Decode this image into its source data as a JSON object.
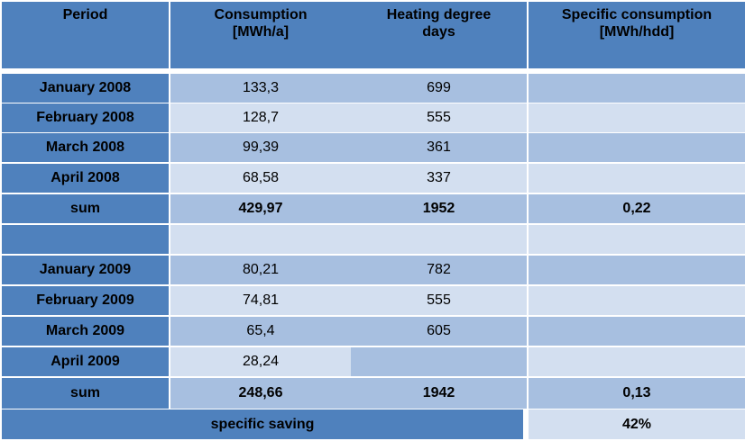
{
  "table": {
    "headers": [
      "Period",
      "Consumption\n[MWh/a]",
      "Heating degree\ndays",
      "Specific  consumption\n[MWh/hdd]"
    ],
    "rows": [
      {
        "period": "January 2008",
        "consumption": "133,3",
        "hdd": "699",
        "specific": ""
      },
      {
        "period": "February 2008",
        "consumption": "128,7",
        "hdd": "555",
        "specific": ""
      },
      {
        "period": "March 2008",
        "consumption": "99,39",
        "hdd": "361",
        "specific": ""
      },
      {
        "period": "April 2008",
        "consumption": "68,58",
        "hdd": "337",
        "specific": ""
      },
      {
        "period": "sum",
        "consumption": "429,97",
        "hdd": "1952",
        "specific": "0,22"
      },
      {
        "period": "",
        "consumption": "",
        "hdd": "",
        "specific": ""
      },
      {
        "period": "January 2009",
        "consumption": "80,21",
        "hdd": "782",
        "specific": ""
      },
      {
        "period": "February 2009",
        "consumption": "74,81",
        "hdd": "555",
        "specific": ""
      },
      {
        "period": "March 2009",
        "consumption": "65,4",
        "hdd": "605",
        "specific": ""
      },
      {
        "period": "April 2009",
        "consumption": "28,24",
        "hdd": "",
        "specific": ""
      },
      {
        "period": "sum",
        "consumption": "248,66",
        "hdd": "1942",
        "specific": "0,13"
      }
    ],
    "footer": {
      "label": "specific saving",
      "value": "42%"
    }
  }
}
